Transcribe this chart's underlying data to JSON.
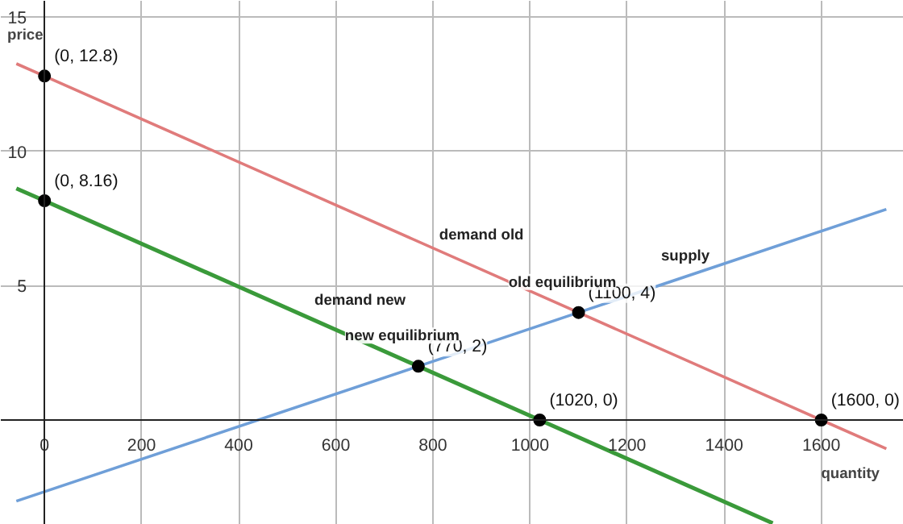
{
  "chart_data": {
    "type": "line",
    "xlabel": "quantity",
    "ylabel": "price",
    "xlim": [
      -90,
      1770
    ],
    "ylim": [
      -3.9,
      15.6
    ],
    "xticks": [
      0,
      200,
      400,
      600,
      800,
      1000,
      1200,
      1400,
      1600
    ],
    "yticks": [
      5,
      10,
      15
    ],
    "grid": true,
    "line_style": "solid",
    "series": [
      {
        "name": "demand old",
        "color": "#e07b7b",
        "x": [
          -58,
          0,
          1600,
          1734
        ],
        "values": [
          13.26,
          12.8,
          0,
          -1.07
        ]
      },
      {
        "name": "demand new",
        "color": "#3a9a3a",
        "x": [
          -58,
          0,
          1020,
          1500
        ],
        "values": [
          8.62,
          8.16,
          0,
          -3.84
        ]
      },
      {
        "name": "supply",
        "color": "#6f9fd8",
        "x": [
          -58,
          770,
          1100,
          1734
        ],
        "values": [
          -3.02,
          2,
          4,
          7.84
        ]
      },
      {
        "type": "scatter",
        "marker": "circle",
        "color": "#000000",
        "x": [
          0,
          0,
          770,
          1100,
          1020,
          1600
        ],
        "values": [
          12.8,
          8.16,
          2,
          4,
          0,
          0
        ],
        "value_labels": [
          "(0, 12.8)",
          "(0, 8.16)",
          "(770, 2)",
          "(1100, 4)",
          "(1020, 0)",
          "(1600, 0)"
        ]
      }
    ],
    "annotations": [
      {
        "text": "old equilibrium",
        "x": 1100,
        "y": 4
      },
      {
        "text": "new equilibrium",
        "x": 770,
        "y": 2
      }
    ]
  }
}
